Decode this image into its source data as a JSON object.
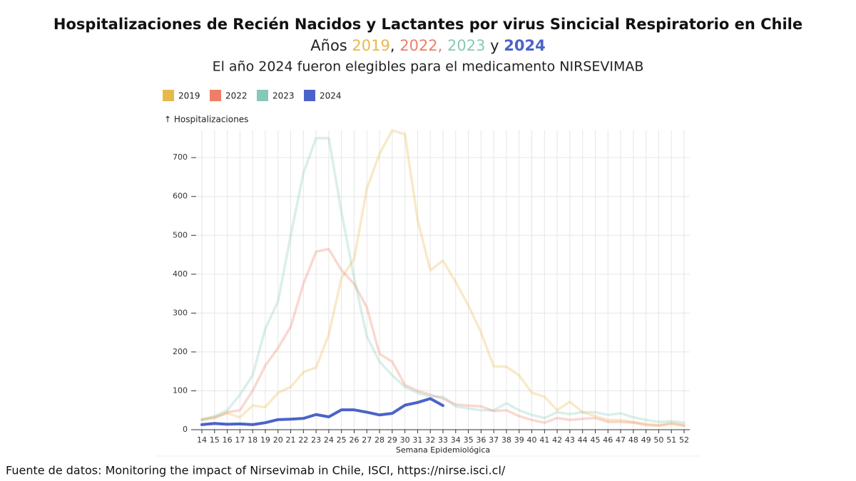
{
  "chart_data": {
    "type": "line",
    "title": "Hospitalizaciones de Recién Nacidos y Lactantes por virus Sincicial Respiratorio en Chile",
    "subtitle_parts": [
      {
        "text": "Años "
      },
      {
        "text": "2019",
        "color": "#e8b84a"
      },
      {
        "text": ", "
      },
      {
        "text": "2022,",
        "color": "#ef7e68"
      },
      {
        "text": " "
      },
      {
        "text": "2023",
        "color": "#86c9b6"
      },
      {
        "text": " y "
      },
      {
        "text": "2024",
        "color": "#4b63c8"
      }
    ],
    "subtitle2": "El año 2024 fueron elegibles para el medicamento NIRSEVIMAB",
    "y_label": "↑ Hospitalizaciones",
    "x_label": "Semana Epidemiológica",
    "source": "Fuente de datos: Monitoring the impact of Nirsevimab in Chile, ISCI,  https://nirse.isci.cl/",
    "x": [
      14,
      15,
      16,
      17,
      18,
      19,
      20,
      21,
      22,
      23,
      24,
      25,
      26,
      27,
      28,
      29,
      30,
      31,
      32,
      33,
      34,
      35,
      36,
      37,
      38,
      39,
      40,
      41,
      42,
      43,
      44,
      45,
      46,
      47,
      48,
      49,
      50,
      51,
      52
    ],
    "xlim": [
      14,
      52
    ],
    "xticks": [
      14,
      15,
      16,
      17,
      18,
      19,
      20,
      21,
      22,
      23,
      24,
      25,
      26,
      27,
      28,
      29,
      30,
      31,
      32,
      33,
      34,
      35,
      36,
      37,
      38,
      39,
      40,
      41,
      42,
      43,
      44,
      45,
      46,
      47,
      48,
      49,
      50,
      51,
      52
    ],
    "ylim": [
      0,
      770
    ],
    "yticks": [
      0,
      100,
      200,
      300,
      400,
      500,
      600,
      700
    ],
    "grid": true,
    "legend": "top-left",
    "series": [
      {
        "name": "2019",
        "color": "#e8b84a",
        "opacity": 0.3,
        "values": [
          28,
          32,
          42,
          32,
          62,
          58,
          95,
          110,
          148,
          160,
          245,
          390,
          440,
          620,
          710,
          770,
          760,
          540,
          410,
          435,
          380,
          320,
          250,
          163,
          162,
          140,
          95,
          85,
          50,
          72,
          45,
          35,
          25,
          25,
          20,
          15,
          12,
          18,
          12
        ]
      },
      {
        "name": "2022",
        "color": "#ef7e68",
        "opacity": 0.3,
        "values": [
          25,
          30,
          45,
          50,
          100,
          165,
          210,
          265,
          375,
          458,
          465,
          410,
          375,
          315,
          195,
          175,
          115,
          100,
          90,
          80,
          65,
          62,
          60,
          48,
          50,
          35,
          25,
          18,
          30,
          25,
          28,
          30,
          20,
          20,
          18,
          12,
          10,
          15,
          10
        ]
      },
      {
        "name": "2023",
        "color": "#86c9b6",
        "opacity": 0.3,
        "values": [
          25,
          35,
          50,
          90,
          140,
          260,
          330,
          500,
          660,
          750,
          750,
          560,
          390,
          240,
          175,
          140,
          110,
          95,
          85,
          85,
          60,
          55,
          50,
          50,
          68,
          50,
          38,
          30,
          45,
          40,
          45,
          45,
          38,
          42,
          32,
          25,
          20,
          22,
          18
        ]
      },
      {
        "name": "2024",
        "color": "#4b63c8",
        "opacity": 1,
        "values": [
          13,
          16,
          14,
          15,
          13,
          18,
          26,
          27,
          29,
          39,
          33,
          51,
          51,
          45,
          38,
          42,
          63,
          70,
          80,
          62,
          null,
          null,
          null,
          null,
          null,
          null,
          null,
          null,
          null,
          null,
          null,
          null,
          null,
          null,
          null,
          null,
          null,
          null,
          null
        ]
      }
    ]
  }
}
